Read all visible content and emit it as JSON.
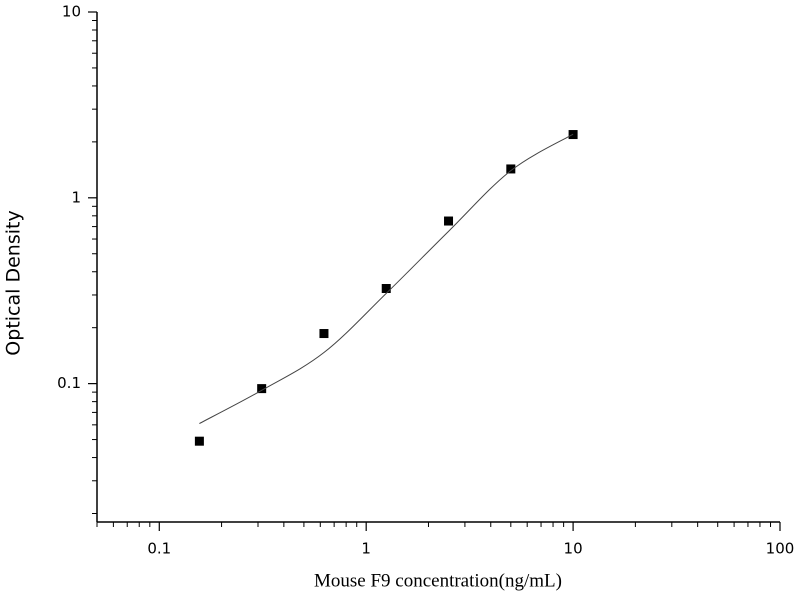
{
  "chart_data": {
    "type": "scatter",
    "x_label": "Mouse  F9  concentration(ng/mL)",
    "y_label": "Optical Density",
    "x": [
      0.15625,
      0.3125,
      0.625,
      1.25,
      2.5,
      5,
      10
    ],
    "series": [
      {
        "color": "#000000",
        "values": [
          0.049,
          0.094,
          0.186,
          0.325,
          0.75,
          1.43,
          2.19
        ]
      },
      {
        "type": "line",
        "color": "#444444",
        "values": [
          0.061,
          0.092,
          0.147,
          0.306,
          0.66,
          1.4,
          2.2
        ]
      }
    ],
    "xlim": [
      0.05,
      100
    ],
    "ylim": [
      0.018,
      10
    ],
    "xticks": [
      0.1,
      1,
      10,
      100
    ],
    "yticks": [
      0.1,
      1,
      10
    ],
    "log_x": true,
    "log_y": true,
    "minor_ticks": true
  }
}
